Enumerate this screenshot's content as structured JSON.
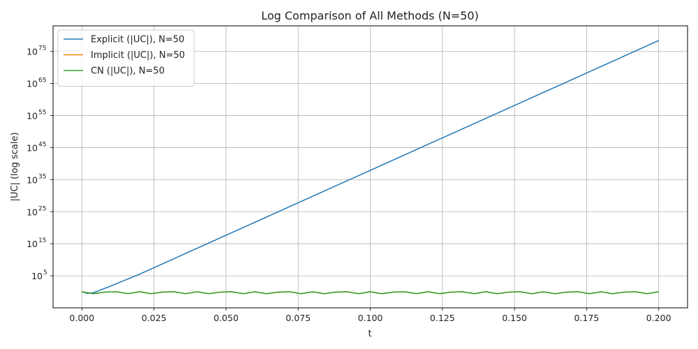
{
  "chart_data": {
    "type": "line",
    "title": "Log Comparison of All Methods (N=50)",
    "xlabel": "t",
    "ylabel": "|UC| (log scale)",
    "xlim": [
      -0.01,
      0.21
    ],
    "ylim_exp": [
      -5,
      83
    ],
    "y_scale": "log",
    "grid": true,
    "legend_position": "top-left",
    "x_ticks": [
      {
        "value": 0.0,
        "label": "0.000"
      },
      {
        "value": 0.025,
        "label": "0.025"
      },
      {
        "value": 0.05,
        "label": "0.050"
      },
      {
        "value": 0.075,
        "label": "0.075"
      },
      {
        "value": 0.1,
        "label": "0.100"
      },
      {
        "value": 0.125,
        "label": "0.125"
      },
      {
        "value": 0.15,
        "label": "0.150"
      },
      {
        "value": 0.175,
        "label": "0.175"
      },
      {
        "value": 0.2,
        "label": "0.200"
      }
    ],
    "y_ticks": [
      {
        "exp": 5,
        "base": "10",
        "power": "5"
      },
      {
        "exp": 15,
        "base": "10",
        "power": "15"
      },
      {
        "exp": 25,
        "base": "10",
        "power": "25"
      },
      {
        "exp": 35,
        "base": "10",
        "power": "35"
      },
      {
        "exp": 45,
        "base": "10",
        "power": "45"
      },
      {
        "exp": 55,
        "base": "10",
        "power": "55"
      },
      {
        "exp": 65,
        "base": "10",
        "power": "65"
      },
      {
        "exp": 75,
        "base": "10",
        "power": "75"
      }
    ],
    "series": [
      {
        "name": "Explicit (|UC|), N=50",
        "color": "#1f77b4",
        "x": [
          0.0,
          0.002,
          0.004,
          0.006,
          0.008,
          0.01,
          0.02,
          0.04,
          0.06,
          0.08,
          0.1,
          0.12,
          0.14,
          0.16,
          0.18,
          0.2
        ],
        "log10_y": [
          0.0,
          -0.5,
          -0.3,
          0.4,
          1.1,
          1.8,
          5.5,
          13.6,
          21.7,
          29.8,
          37.9,
          46.0,
          54.1,
          62.2,
          70.3,
          78.4
        ]
      },
      {
        "name": "Implicit (|UC|), N=50",
        "color": "#ff7f0e",
        "x": [
          0.0,
          0.004,
          0.008,
          0.012,
          0.016,
          0.02,
          0.024,
          0.028,
          0.032,
          0.036,
          0.04,
          0.044,
          0.048,
          0.052,
          0.056,
          0.06,
          0.064,
          0.068,
          0.072,
          0.076,
          0.08,
          0.084,
          0.088,
          0.092,
          0.096,
          0.1,
          0.104,
          0.108,
          0.112,
          0.116,
          0.12,
          0.124,
          0.128,
          0.132,
          0.136,
          0.14,
          0.144,
          0.148,
          0.152,
          0.156,
          0.16,
          0.164,
          0.168,
          0.172,
          0.176,
          0.18,
          0.184,
          0.188,
          0.192,
          0.196,
          0.2
        ],
        "log10_y": [
          0.0,
          -0.6,
          -0.1,
          0.0,
          -0.6,
          0.0,
          -0.6,
          -0.1,
          0.0,
          -0.6,
          0.0,
          -0.6,
          -0.1,
          0.0,
          -0.6,
          0.0,
          -0.6,
          -0.1,
          0.0,
          -0.6,
          0.0,
          -0.6,
          -0.1,
          0.0,
          -0.6,
          0.0,
          -0.6,
          -0.1,
          0.0,
          -0.6,
          0.0,
          -0.6,
          -0.1,
          0.0,
          -0.6,
          0.0,
          -0.6,
          -0.1,
          0.0,
          -0.6,
          0.0,
          -0.6,
          -0.1,
          0.0,
          -0.6,
          0.0,
          -0.6,
          -0.1,
          0.0,
          -0.6,
          0.0
        ]
      },
      {
        "name": "CN (|UC|), N=50",
        "color": "#2ca02c",
        "x": [
          0.0,
          0.004,
          0.008,
          0.012,
          0.016,
          0.02,
          0.024,
          0.028,
          0.032,
          0.036,
          0.04,
          0.044,
          0.048,
          0.052,
          0.056,
          0.06,
          0.064,
          0.068,
          0.072,
          0.076,
          0.08,
          0.084,
          0.088,
          0.092,
          0.096,
          0.1,
          0.104,
          0.108,
          0.112,
          0.116,
          0.12,
          0.124,
          0.128,
          0.132,
          0.136,
          0.14,
          0.144,
          0.148,
          0.152,
          0.156,
          0.16,
          0.164,
          0.168,
          0.172,
          0.176,
          0.18,
          0.184,
          0.188,
          0.192,
          0.196,
          0.2
        ],
        "log10_y": [
          0.0,
          -0.6,
          -0.1,
          0.0,
          -0.6,
          0.0,
          -0.6,
          -0.1,
          0.0,
          -0.6,
          0.0,
          -0.6,
          -0.1,
          0.0,
          -0.6,
          0.0,
          -0.6,
          -0.1,
          0.0,
          -0.6,
          0.0,
          -0.6,
          -0.1,
          0.0,
          -0.6,
          0.0,
          -0.6,
          -0.1,
          0.0,
          -0.6,
          0.0,
          -0.6,
          -0.1,
          0.0,
          -0.6,
          0.0,
          -0.6,
          -0.1,
          0.0,
          -0.6,
          0.0,
          -0.6,
          -0.1,
          0.0,
          -0.6,
          0.0,
          -0.6,
          -0.1,
          0.0,
          -0.6,
          0.0
        ]
      }
    ]
  }
}
